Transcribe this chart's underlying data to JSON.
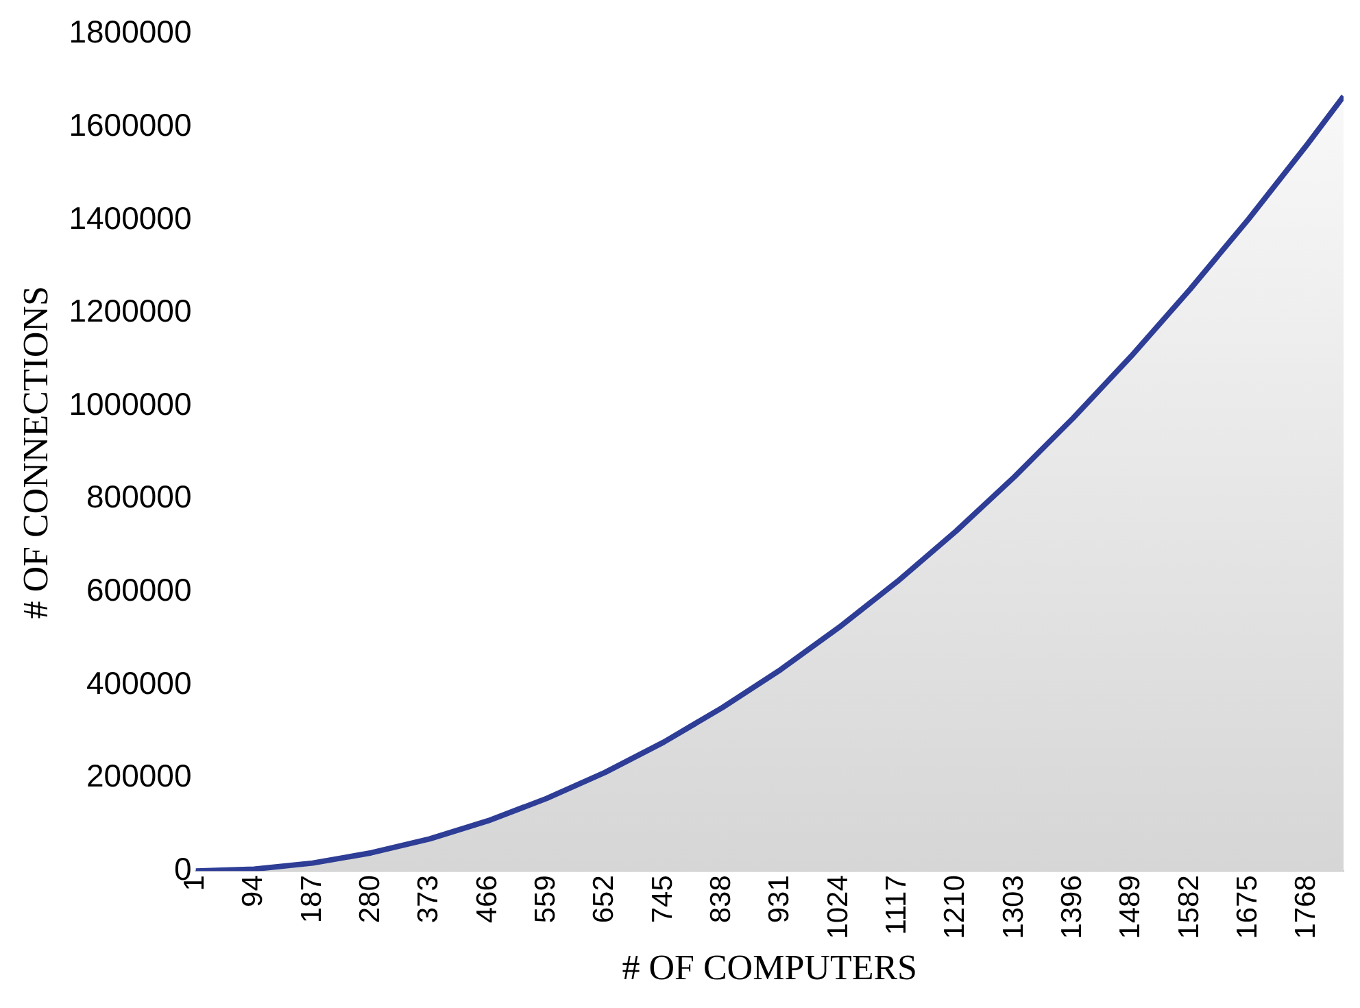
{
  "chart_data": {
    "type": "area",
    "xlabel": "# OF COMPUTERS",
    "ylabel": "# OF CONNECTIONS",
    "x": [
      1,
      94,
      187,
      280,
      373,
      466,
      559,
      652,
      745,
      838,
      931,
      1024,
      1117,
      1210,
      1303,
      1396,
      1489,
      1582,
      1675,
      1768,
      1826
    ],
    "series": [
      {
        "color": "#2e3d96",
        "values": [
          0,
          4000,
          17000,
          39000,
          69000,
          108000,
          156000,
          212000,
          277000,
          351000,
          433000,
          524000,
          623000,
          731000,
          848000,
          974000,
          1108000,
          1251000,
          1402000,
          1562000,
          1666000
        ]
      }
    ],
    "xlim": [
      1,
      1826
    ],
    "xticks": [
      1,
      94,
      187,
      280,
      373,
      466,
      559,
      652,
      745,
      838,
      931,
      1024,
      1117,
      1210,
      1303,
      1396,
      1489,
      1582,
      1675,
      1768
    ],
    "ylim": [
      0,
      1800000
    ],
    "yticks": [
      0,
      200000,
      400000,
      600000,
      800000,
      1000000,
      1200000,
      1400000,
      1600000,
      1800000
    ],
    "grid": false,
    "legend": false,
    "marker": "none",
    "line_style": "solid"
  }
}
